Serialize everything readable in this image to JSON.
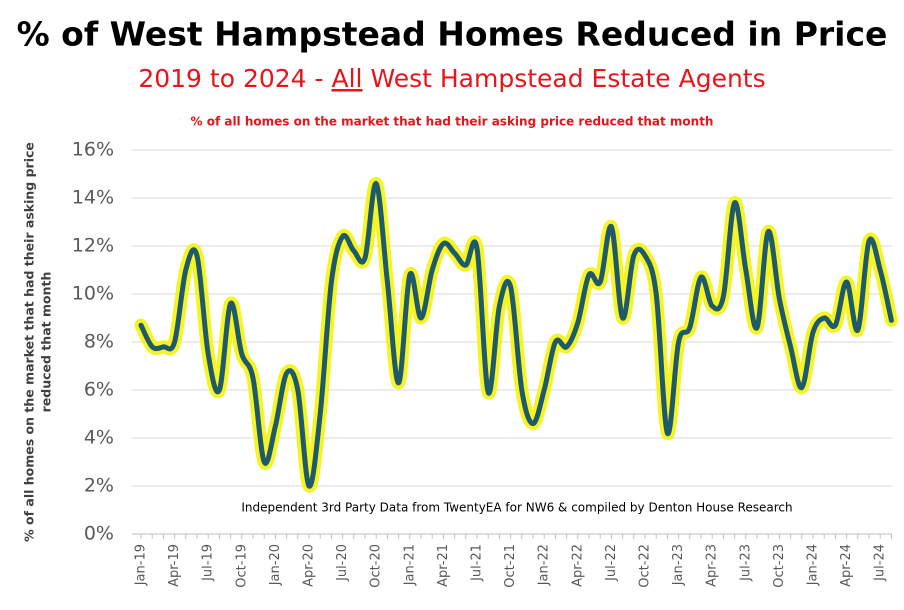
{
  "chart_data": {
    "type": "line",
    "title": "% of West Hampstead Homes Reduced in Price",
    "subtitle_parts": [
      "2019 to 2024 - ",
      "All",
      " West Hampstead Estate Agents"
    ],
    "annotation": "% of all homes on the market that had their asking price reduced that month",
    "note": "Independent 3rd Party Data from TwentyEA for NW6 & compiled by Denton House Research",
    "y_label": [
      "% of all homes on the market that had their asking price",
      "reduced that month"
    ],
    "categories": [
      "Jan-19",
      null,
      null,
      "Apr-19",
      null,
      null,
      "Jul-19",
      null,
      null,
      "Oct-19",
      null,
      null,
      "Jan-20",
      null,
      null,
      "Apr-20",
      null,
      null,
      "Jul-20",
      null,
      null,
      "Oct-20",
      null,
      null,
      "Jan-21",
      null,
      null,
      "Apr-21",
      null,
      null,
      "Jul-21",
      null,
      null,
      "Oct-21",
      null,
      null,
      "Jan-22",
      null,
      null,
      "Apr-22",
      null,
      null,
      "Jul-22",
      null,
      null,
      "Oct-22",
      null,
      null,
      "Jan-23",
      null,
      null,
      "Apr-23",
      null,
      null,
      "Jul-23",
      null,
      null,
      "Oct-23",
      null,
      null,
      "Jan-24",
      null,
      null,
      "Apr-24",
      null,
      null,
      "Jul-24",
      null
    ],
    "series": [
      {
        "name": "% reduced",
        "color": "#1f5a6b",
        "glow": "#f2f200",
        "values": [
          8.7,
          7.8,
          7.8,
          8.0,
          11.0,
          11.6,
          7.5,
          6.0,
          9.6,
          7.5,
          6.5,
          3.0,
          4.5,
          6.7,
          6.0,
          2.0,
          5.0,
          10.5,
          12.4,
          11.8,
          11.5,
          14.6,
          10.5,
          6.3,
          10.8,
          9.0,
          11.0,
          12.1,
          11.7,
          11.2,
          11.9,
          5.9,
          9.5,
          10.3,
          6.0,
          4.6,
          6.0,
          8.0,
          7.8,
          8.8,
          10.8,
          10.5,
          12.8,
          9.0,
          11.6,
          11.6,
          10.0,
          4.2,
          8.0,
          8.6,
          10.7,
          9.5,
          9.9,
          13.8,
          11.0,
          8.6,
          12.6,
          9.8,
          7.8,
          6.1,
          8.4,
          9.0,
          8.7,
          10.5,
          8.5,
          12.2,
          11.0,
          8.9
        ]
      }
    ],
    "ylim": [
      0,
      16
    ],
    "yticks": [
      {
        "value": 0,
        "label": "0%"
      },
      {
        "value": 2,
        "label": "2%"
      },
      {
        "value": 4,
        "label": "4%"
      },
      {
        "value": 6,
        "label": "6%"
      },
      {
        "value": 8,
        "label": "8%"
      },
      {
        "value": 10,
        "label": "10%"
      },
      {
        "value": 12,
        "label": "12%"
      },
      {
        "value": 14,
        "label": "14%"
      },
      {
        "value": 16,
        "label": "16%"
      }
    ],
    "grid": true
  }
}
